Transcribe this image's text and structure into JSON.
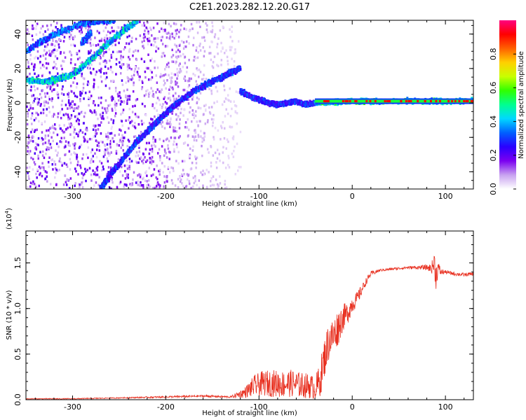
{
  "chart_data": [
    {
      "type": "heatmap",
      "title": "C2E1.2023.282.12.20.G17",
      "xlabel": "Height of straight line (km)",
      "ylabel": "Frequency (Hz)",
      "xlim": [
        -350,
        130
      ],
      "ylim": [
        -50,
        48
      ],
      "xticks": [
        -300,
        -200,
        -100,
        0,
        100
      ],
      "yticks": [
        -40,
        -20,
        0,
        20,
        40
      ],
      "colorbar": {
        "label": "Normalized spectral amplitude",
        "range": [
          0.0,
          1.0
        ],
        "ticks": [
          "0.0",
          "0.2",
          "0.4",
          "0.6",
          "0.8"
        ],
        "colormap": [
          "#ffffff",
          "#c8a2f0",
          "#7b00f0",
          "#2a00ff",
          "#0060ff",
          "#00d8ff",
          "#00ff90",
          "#30ff00",
          "#c8ff00",
          "#ffd000",
          "#ff6000",
          "#ff0000",
          "#ff0080"
        ]
      },
      "ridges": [
        {
          "x": [
            -350,
            -320,
            -290,
            -270,
            -255
          ],
          "y": [
            30,
            40,
            46,
            48,
            48
          ],
          "amplitude": 0.35
        },
        {
          "x": [
            -355,
            -330,
            -300,
            -275,
            -250,
            -230
          ],
          "y": [
            14,
            12,
            16,
            28,
            40,
            48
          ],
          "amplitude": 0.45
        },
        {
          "x": [
            -290,
            -280
          ],
          "y": [
            35,
            41
          ],
          "amplitude": 0.35
        },
        {
          "x": [
            -270,
            -260,
            -245,
            -230,
            -215,
            -200,
            -185,
            -170,
            -155,
            -140,
            -130,
            -120
          ],
          "y": [
            -50,
            -42,
            -32,
            -22,
            -14,
            -6,
            1,
            7,
            11,
            15,
            18,
            20
          ],
          "amplitude": 0.3
        },
        {
          "x": [
            -120,
            -110,
            -100,
            -90,
            -80,
            -70,
            -60,
            -50,
            -40
          ],
          "y": [
            7,
            4,
            2,
            0,
            -1,
            0,
            1,
            -1,
            0
          ],
          "amplitude": 0.3
        },
        {
          "x": [
            -40,
            -20,
            0,
            20,
            40,
            60,
            80,
            100,
            130
          ],
          "y": [
            0,
            0.5,
            1,
            1,
            1,
            1,
            1,
            1,
            1
          ],
          "amplitude": 0.5
        }
      ]
    },
    {
      "type": "line",
      "title": "",
      "xlabel": "Height of straight line (km)",
      "ylabel": "SNR (10 * v/v)",
      "exponent_label": "(x10",
      "exponent": "4",
      "exponent_close": ")",
      "xlim": [
        -350,
        130
      ],
      "ylim": [
        0,
        1.85
      ],
      "xticks": [
        -300,
        -200,
        -100,
        0,
        100
      ],
      "yticks": [
        "0.0",
        "0.5",
        "1.0",
        "1.5"
      ],
      "series_color": "#e83020",
      "x": [
        -350,
        -300,
        -250,
        -200,
        -160,
        -130,
        -115,
        -105,
        -95,
        -85,
        -75,
        -65,
        -55,
        -45,
        -40,
        -35,
        -30,
        -25,
        -20,
        -15,
        -10,
        -5,
        0,
        5,
        10,
        15,
        20,
        25,
        30,
        40,
        50,
        60,
        70,
        80,
        85,
        88,
        90,
        92,
        95,
        100,
        110,
        120,
        130
      ],
      "y": [
        0.01,
        0.01,
        0.02,
        0.03,
        0.04,
        0.03,
        0.08,
        0.15,
        0.18,
        0.18,
        0.17,
        0.18,
        0.16,
        0.15,
        0.12,
        0.2,
        0.45,
        0.65,
        0.7,
        0.8,
        0.9,
        0.95,
        1.05,
        1.1,
        1.2,
        1.3,
        1.38,
        1.4,
        1.42,
        1.43,
        1.44,
        1.45,
        1.45,
        1.45,
        1.44,
        1.5,
        1.35,
        1.45,
        1.4,
        1.4,
        1.38,
        1.37,
        1.38
      ],
      "noise": [
        0.005,
        0.005,
        0.006,
        0.01,
        0.012,
        0.01,
        0.06,
        0.12,
        0.14,
        0.15,
        0.15,
        0.15,
        0.14,
        0.14,
        0.12,
        0.2,
        0.22,
        0.22,
        0.2,
        0.2,
        0.15,
        0.12,
        0.1,
        0.08,
        0.06,
        0.04,
        0.03,
        0.02,
        0.015,
        0.015,
        0.015,
        0.015,
        0.02,
        0.03,
        0.05,
        0.15,
        0.15,
        0.08,
        0.04,
        0.02,
        0.02,
        0.02,
        0.02
      ]
    }
  ]
}
